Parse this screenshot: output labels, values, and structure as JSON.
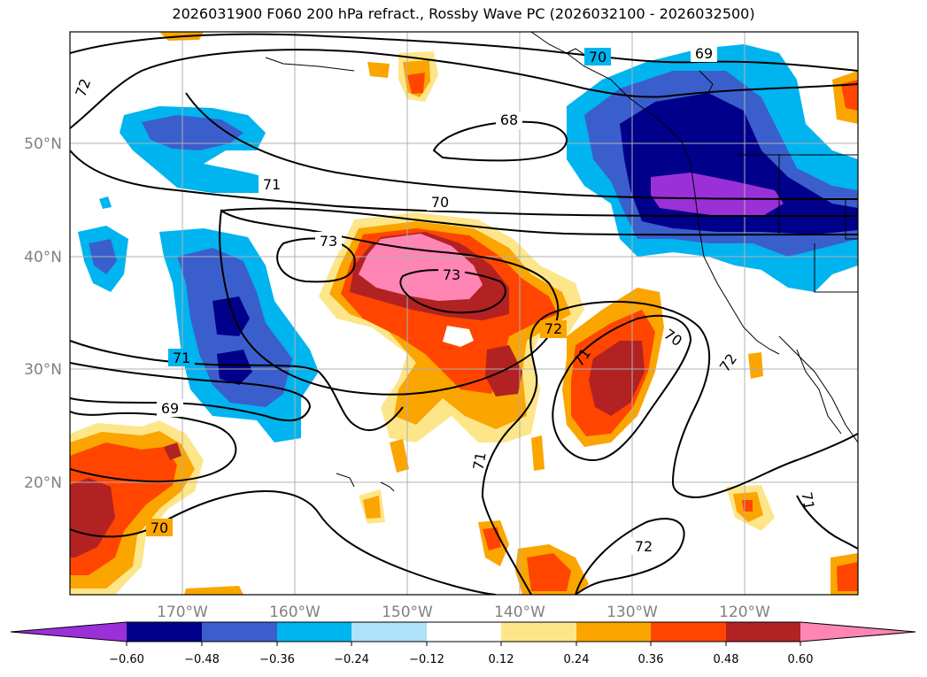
{
  "title": "2026031900 F060 200 hPa refract., Rossby Wave PC (2026032100 - 2026032500)",
  "lat_labels": [
    "50°N",
    "40°N",
    "30°N",
    "20°N"
  ],
  "lon_labels": [
    "170°W",
    "160°W",
    "150°W",
    "140°W",
    "130°W",
    "120°W"
  ],
  "contour_labels": [
    "72",
    "68",
    "69",
    "71",
    "70",
    "73",
    "73",
    "72",
    "71",
    "70",
    "72",
    "71",
    "69",
    "70",
    "71",
    "72",
    "71",
    "70"
  ],
  "colorbar": {
    "colors": [
      "#9b30d9",
      "#00008b",
      "#3a5fcd",
      "#00b4f0",
      "#ade2f8",
      "#ffffff",
      "#fde68a",
      "#fba500",
      "#ff4500",
      "#b22222",
      "#ff85b4"
    ],
    "tick_labels": [
      "−0.60",
      "−0.48",
      "−0.36",
      "−0.24",
      "−0.12",
      "0.12",
      "0.24",
      "0.36",
      "0.48",
      "0.60"
    ]
  }
}
